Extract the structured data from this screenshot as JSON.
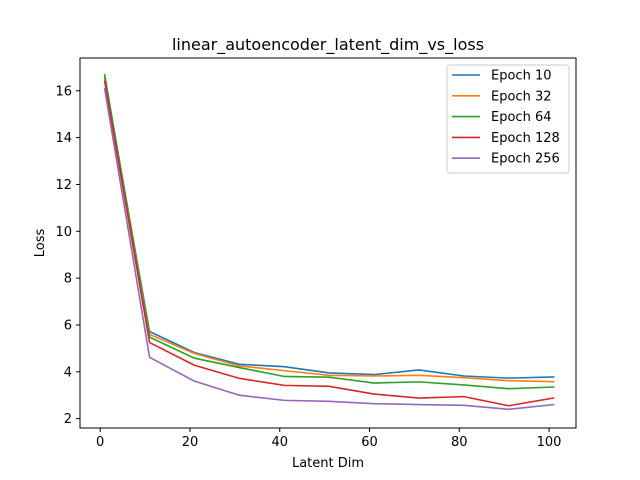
{
  "chart_data": {
    "type": "line",
    "title": "linear_autoencoder_latent_dim_vs_loss",
    "xlabel": "Latent Dim",
    "ylabel": "Loss",
    "xlim": [
      -4.5,
      106
    ],
    "ylim": [
      1.6,
      17.4
    ],
    "xticks": [
      0,
      20,
      40,
      60,
      80,
      100
    ],
    "yticks": [
      2,
      4,
      6,
      8,
      10,
      12,
      14,
      16
    ],
    "grid": false,
    "legend_position": "top-right",
    "x": [
      1,
      11,
      21,
      31,
      41,
      51,
      61,
      71,
      81,
      91,
      101
    ],
    "series": [
      {
        "name": "Epoch 10",
        "color": "#1f77b4",
        "values": [
          16.55,
          5.72,
          4.82,
          4.32,
          4.22,
          3.95,
          3.88,
          4.08,
          3.82,
          3.73,
          3.78
        ]
      },
      {
        "name": "Epoch 32",
        "color": "#ff7f0e",
        "values": [
          16.6,
          5.6,
          4.78,
          4.25,
          4.05,
          3.85,
          3.82,
          3.85,
          3.75,
          3.62,
          3.58
        ]
      },
      {
        "name": "Epoch 64",
        "color": "#2ca02c",
        "values": [
          16.68,
          5.48,
          4.58,
          4.18,
          3.8,
          3.77,
          3.52,
          3.57,
          3.44,
          3.28,
          3.35
        ]
      },
      {
        "name": "Epoch 128",
        "color": "#d62728",
        "values": [
          16.4,
          5.25,
          4.28,
          3.72,
          3.42,
          3.38,
          3.05,
          2.88,
          2.94,
          2.55,
          2.88
        ]
      },
      {
        "name": "Epoch 256",
        "color": "#9467bd",
        "values": [
          16.08,
          4.62,
          3.6,
          3.0,
          2.78,
          2.74,
          2.64,
          2.6,
          2.57,
          2.4,
          2.6
        ]
      }
    ]
  }
}
